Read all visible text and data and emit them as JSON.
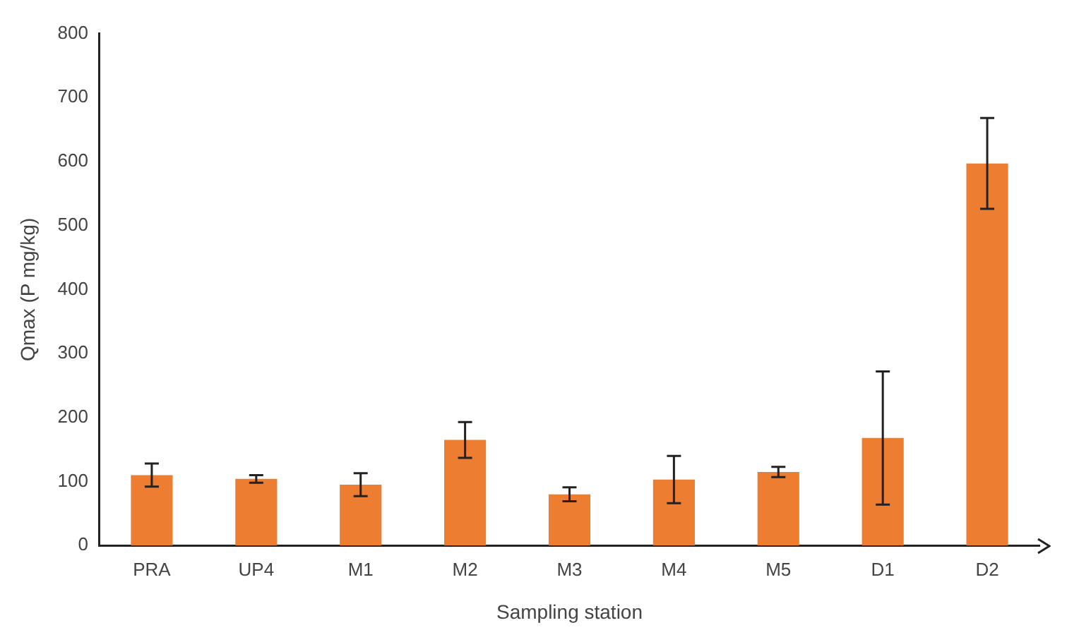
{
  "chart_data": {
    "type": "bar",
    "xlabel": "Sampling station",
    "ylabel": "Qmax (P mg/kg)",
    "categories": [
      "PRA",
      "UP4",
      "M1",
      "M2",
      "M3",
      "M4",
      "M5",
      "D1",
      "D2"
    ],
    "values": [
      110,
      104,
      95,
      165,
      80,
      103,
      115,
      168,
      597
    ],
    "errors": [
      18,
      6,
      18,
      28,
      11,
      37,
      8,
      104,
      71
    ],
    "color": "#ed7d31",
    "ylim": [
      0,
      800
    ],
    "yticks": [
      0,
      100,
      200,
      300,
      400,
      500,
      600,
      700,
      800
    ],
    "grid": false
  }
}
